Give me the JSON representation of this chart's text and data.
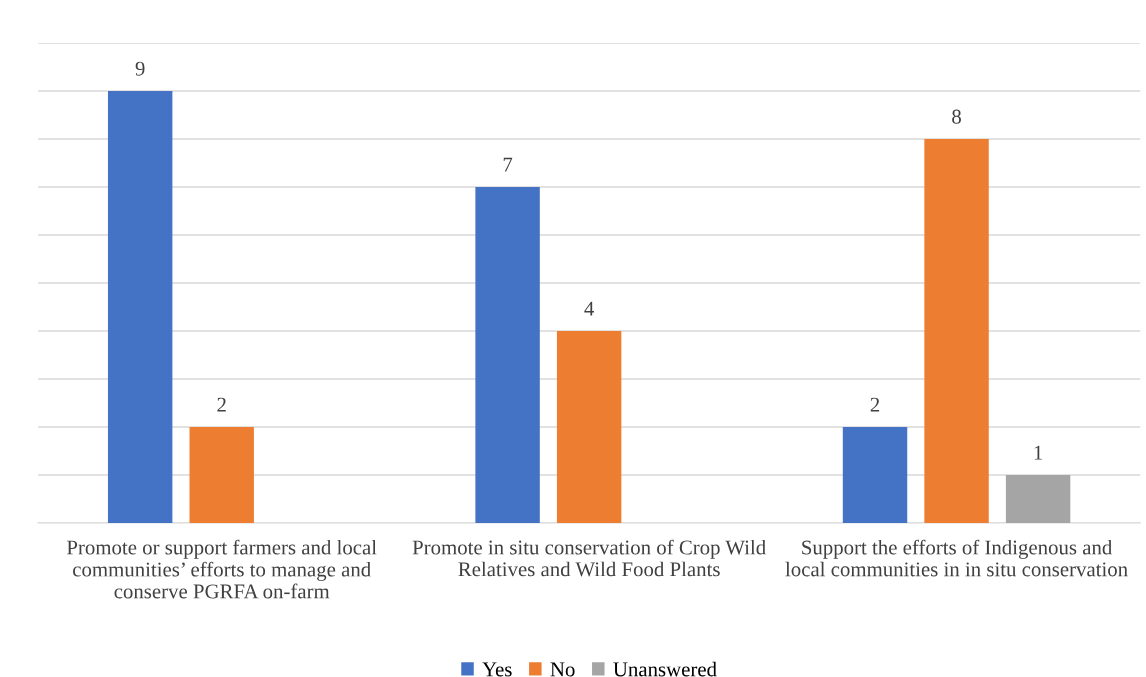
{
  "chart_data": {
    "type": "bar",
    "categories": [
      "Promote or support farmers and local\ncommunities’ efforts to manage and\nconserve PGRFA on-farm",
      "Promote in situ conservation of Crop Wild\nRelatives and Wild Food Plants",
      "Support the efforts of Indigenous and\nlocal communities in in situ conservation"
    ],
    "series": [
      {
        "name": "Yes",
        "color": "#4472c4",
        "values": [
          9,
          7,
          2
        ]
      },
      {
        "name": "No",
        "color": "#ed7d31",
        "values": [
          2,
          4,
          8
        ]
      },
      {
        "name": "Unanswered",
        "color": "#a5a5a5",
        "values": [
          null,
          null,
          1
        ]
      }
    ],
    "ylim": [
      0,
      10
    ],
    "yticks": [
      {
        "value": 0,
        "label": null
      },
      {
        "value": 1,
        "label": null
      },
      {
        "value": 2,
        "label": null
      },
      {
        "value": 3,
        "label": null
      },
      {
        "value": 4,
        "label": null
      },
      {
        "value": 5,
        "label": null
      },
      {
        "value": 6,
        "label": null
      },
      {
        "value": 7,
        "label": null
      },
      {
        "value": 8,
        "label": null
      },
      {
        "value": 9,
        "label": null
      },
      {
        "value": 10,
        "label": null
      }
    ],
    "tick_labels": "x",
    "grid": "y",
    "legend": "bottom",
    "data_labels": true
  }
}
